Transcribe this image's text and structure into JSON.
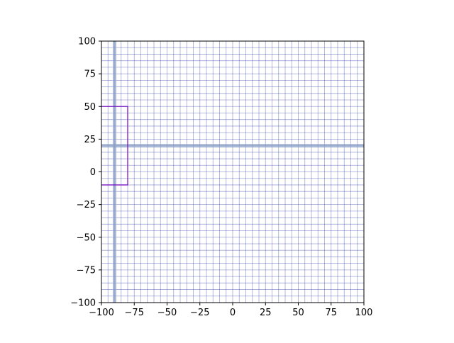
{
  "chart_data": {
    "type": "line",
    "title": "",
    "xlabel": "",
    "ylabel": "",
    "xlim": [
      -100,
      100
    ],
    "ylim": [
      -100,
      100
    ],
    "xticks": [
      -100,
      -75,
      -50,
      -25,
      0,
      25,
      50,
      75,
      100
    ],
    "yticks": [
      -100,
      -75,
      -50,
      -25,
      0,
      25,
      50,
      75,
      100
    ],
    "xtick_labels": [
      "−100",
      "−75",
      "−50",
      "−25",
      "0",
      "25",
      "50",
      "75",
      "100"
    ],
    "ytick_labels": [
      "−100",
      "−75",
      "−50",
      "−25",
      "0",
      "25",
      "50",
      "75",
      "100"
    ],
    "grid": true,
    "grid_step": 5,
    "grid_color": "#1f2e9a",
    "highlight_color": "#8fa3c8",
    "highlight_lines": {
      "vertical_x": -90,
      "horizontal_y": 20
    },
    "series": [
      {
        "color": "#7b16c4",
        "x": [
          -100,
          -80,
          -80,
          -100
        ],
        "y": [
          50,
          50,
          -10,
          -10
        ]
      }
    ]
  }
}
